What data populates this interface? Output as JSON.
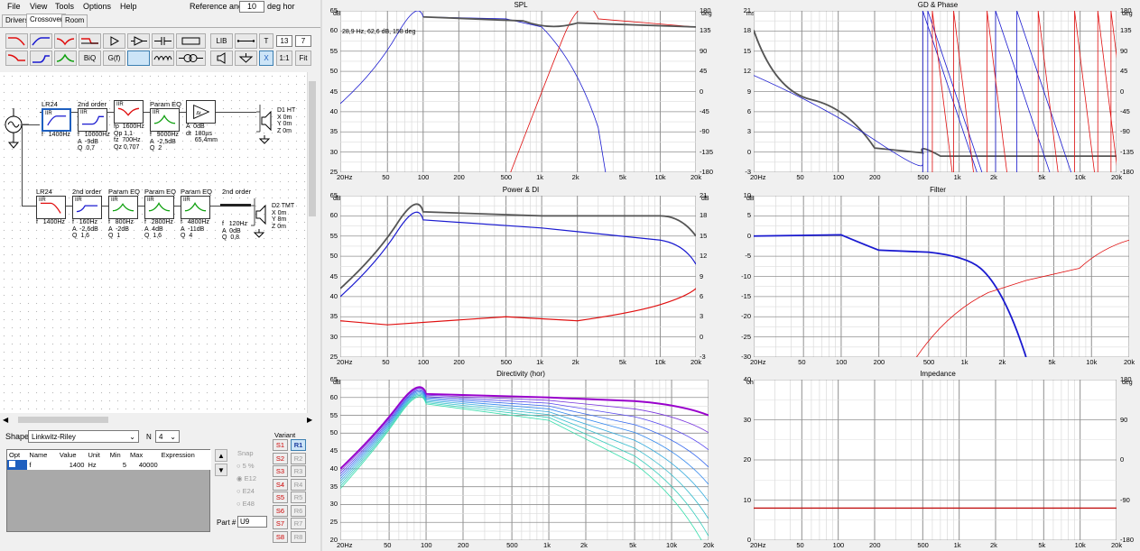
{
  "menu": {
    "file": "File",
    "view": "View",
    "tools": "Tools",
    "options": "Options",
    "help": "Help"
  },
  "ref": {
    "label": "Reference angle",
    "value": "10",
    "unit": "deg hor"
  },
  "tabs": [
    "Drivers",
    "Crossover",
    "Room"
  ],
  "toolbar": {
    "lib": "LIB",
    "t": "T",
    "x": "X",
    "ratio": "1:1",
    "fit": "Fit",
    "biq": "BiQ",
    "gf": "G(f)",
    "num1": "13",
    "num2": "7"
  },
  "blocks_top": [
    {
      "title": "LR24",
      "tag": "IIR",
      "params": "f   1400Hz"
    },
    {
      "title": "2nd order",
      "tag": "IIR",
      "params": "f   10000Hz\nA  -9dB\nQ  0,7"
    },
    {
      "title": "",
      "tag": "IIR",
      "params": "fp  1600Hz\nQp 1,1\nfz  700Hz\nQz 0,707"
    },
    {
      "title": "Param EQ",
      "tag": "IIR",
      "params": "f   9000Hz\nA  -2,5dB\nQ  2"
    },
    {
      "title": "",
      "tag": "",
      "params": "A  0dB\ndt  180µs\n     65,4mm"
    }
  ],
  "blocks_bot": [
    {
      "title": "LR24",
      "tag": "IIR",
      "params": "f   1400Hz"
    },
    {
      "title": "2nd order",
      "tag": "IIR",
      "params": "f   160Hz\nA  -2,6dB\nQ  1,6"
    },
    {
      "title": "Param EQ",
      "tag": "IIR",
      "params": "f   800Hz\nA  -2dB\nQ  1"
    },
    {
      "title": "Param EQ",
      "tag": "IIR",
      "params": "f   2800Hz\nA  4dB\nQ  1,6"
    },
    {
      "title": "Param EQ",
      "tag": "IIR",
      "params": "f   4800Hz\nA  -11dB\nQ  4"
    },
    {
      "title": "2nd order",
      "tag": "",
      "params": "f   120Hz\nA  0dB\nQ  0,8"
    }
  ],
  "driver1": {
    "name": "D1 HT",
    "lines": [
      "X 0m",
      "Y 0m",
      "Z 0m"
    ]
  },
  "driver2": {
    "name": "D2 TMT",
    "lines": [
      "X 0m",
      "Y 8m",
      "Z 0m"
    ]
  },
  "bottom": {
    "shape_label": "Shape",
    "shape_value": "Linkwitz-Riley",
    "n_label": "N",
    "n_value": "4",
    "headers": [
      "Opt",
      "Name",
      "Value",
      "Unit",
      "Min",
      "Max",
      "Expression"
    ],
    "row": [
      "",
      "f",
      "1400",
      "Hz",
      "5",
      "40000",
      ""
    ],
    "snap_label": "Snap",
    "snap_opts": [
      "5 %",
      "E12",
      "E24",
      "E48"
    ],
    "part_label": "Part #",
    "part_value": "U9",
    "variant_label": "Variant",
    "variants_s": [
      "S1",
      "S2",
      "S3",
      "S4",
      "S5",
      "S6",
      "S7",
      "S8"
    ],
    "variants_r": [
      "R1",
      "R2",
      "R3",
      "R4",
      "R5",
      "R6",
      "R7",
      "R8"
    ]
  },
  "colors": {
    "bg": "#f0f0f0",
    "grid": "#c0c0c0",
    "blue": "#1a1ad0",
    "red": "#e01010",
    "gray": "#555555"
  },
  "charts": [
    {
      "title": "SPL",
      "lunit": "dB",
      "runit": "deg",
      "cursor": "28,9 Hz, 62,6 dB, 158 deg",
      "lticks": [
        "65",
        "60",
        "55",
        "50",
        "45",
        "40",
        "35",
        "30",
        "25"
      ],
      "rticks": [
        "180",
        "135",
        "90",
        "45",
        "0",
        "-45",
        "-90",
        "-135",
        "-180"
      ]
    },
    {
      "title": "GD & Phase",
      "lunit": "ms",
      "runit": "deg",
      "lticks": [
        "21",
        "18",
        "15",
        "12",
        "9",
        "6",
        "3",
        "0",
        "-3"
      ],
      "rticks": [
        "180",
        "135",
        "90",
        "45",
        "0",
        "-45",
        "-90",
        "-135",
        "-180"
      ]
    },
    {
      "title": "Power & DI",
      "lunit": "dB",
      "runit": "dB",
      "lticks": [
        "65",
        "60",
        "55",
        "50",
        "45",
        "40",
        "35",
        "30",
        "25"
      ],
      "rticks": [
        "21",
        "18",
        "15",
        "12",
        "9",
        "6",
        "3",
        "0",
        "-3"
      ]
    },
    {
      "title": "Filter",
      "lunit": "dB",
      "runit": "",
      "lticks": [
        "10",
        "5",
        "0",
        "-5",
        "-10",
        "-15",
        "-20",
        "-25",
        "-30"
      ],
      "rticks": []
    },
    {
      "title": "Directivity (hor)",
      "lunit": "dB",
      "runit": "",
      "lticks": [
        "65",
        "60",
        "55",
        "50",
        "45",
        "40",
        "35",
        "30",
        "25",
        "20"
      ],
      "rticks": []
    },
    {
      "title": "Impedance",
      "lunit": "ohm",
      "runit": "deg",
      "lticks": [
        "40",
        "30",
        "20",
        "10",
        "0"
      ],
      "rticks": [
        "180",
        "90",
        "0",
        "-90",
        "-180"
      ]
    }
  ],
  "xticks": [
    "20Hz",
    "50",
    "100",
    "200",
    "500",
    "1k",
    "2k",
    "5k",
    "10k",
    "20k"
  ]
}
